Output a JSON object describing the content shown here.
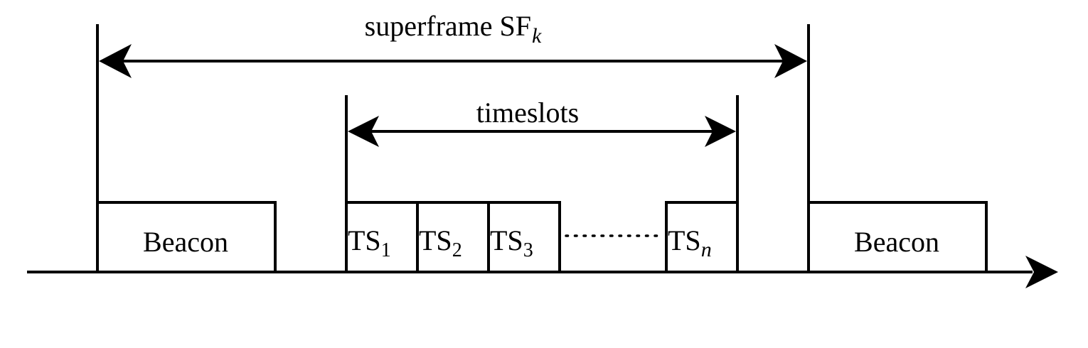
{
  "superframe": {
    "label": "superframe SF",
    "subscript": "k"
  },
  "timeslots": {
    "label": "timeslots"
  },
  "beacon_left": {
    "label": "Beacon"
  },
  "beacon_right": {
    "label": "Beacon"
  },
  "slots": [
    {
      "prefix": "TS",
      "sub": "1"
    },
    {
      "prefix": "TS",
      "sub": "2"
    },
    {
      "prefix": "TS",
      "sub": "3"
    },
    {
      "prefix": "TS",
      "sub": "n"
    }
  ],
  "colors": {
    "stroke": "#000000",
    "background": "#ffffff"
  }
}
